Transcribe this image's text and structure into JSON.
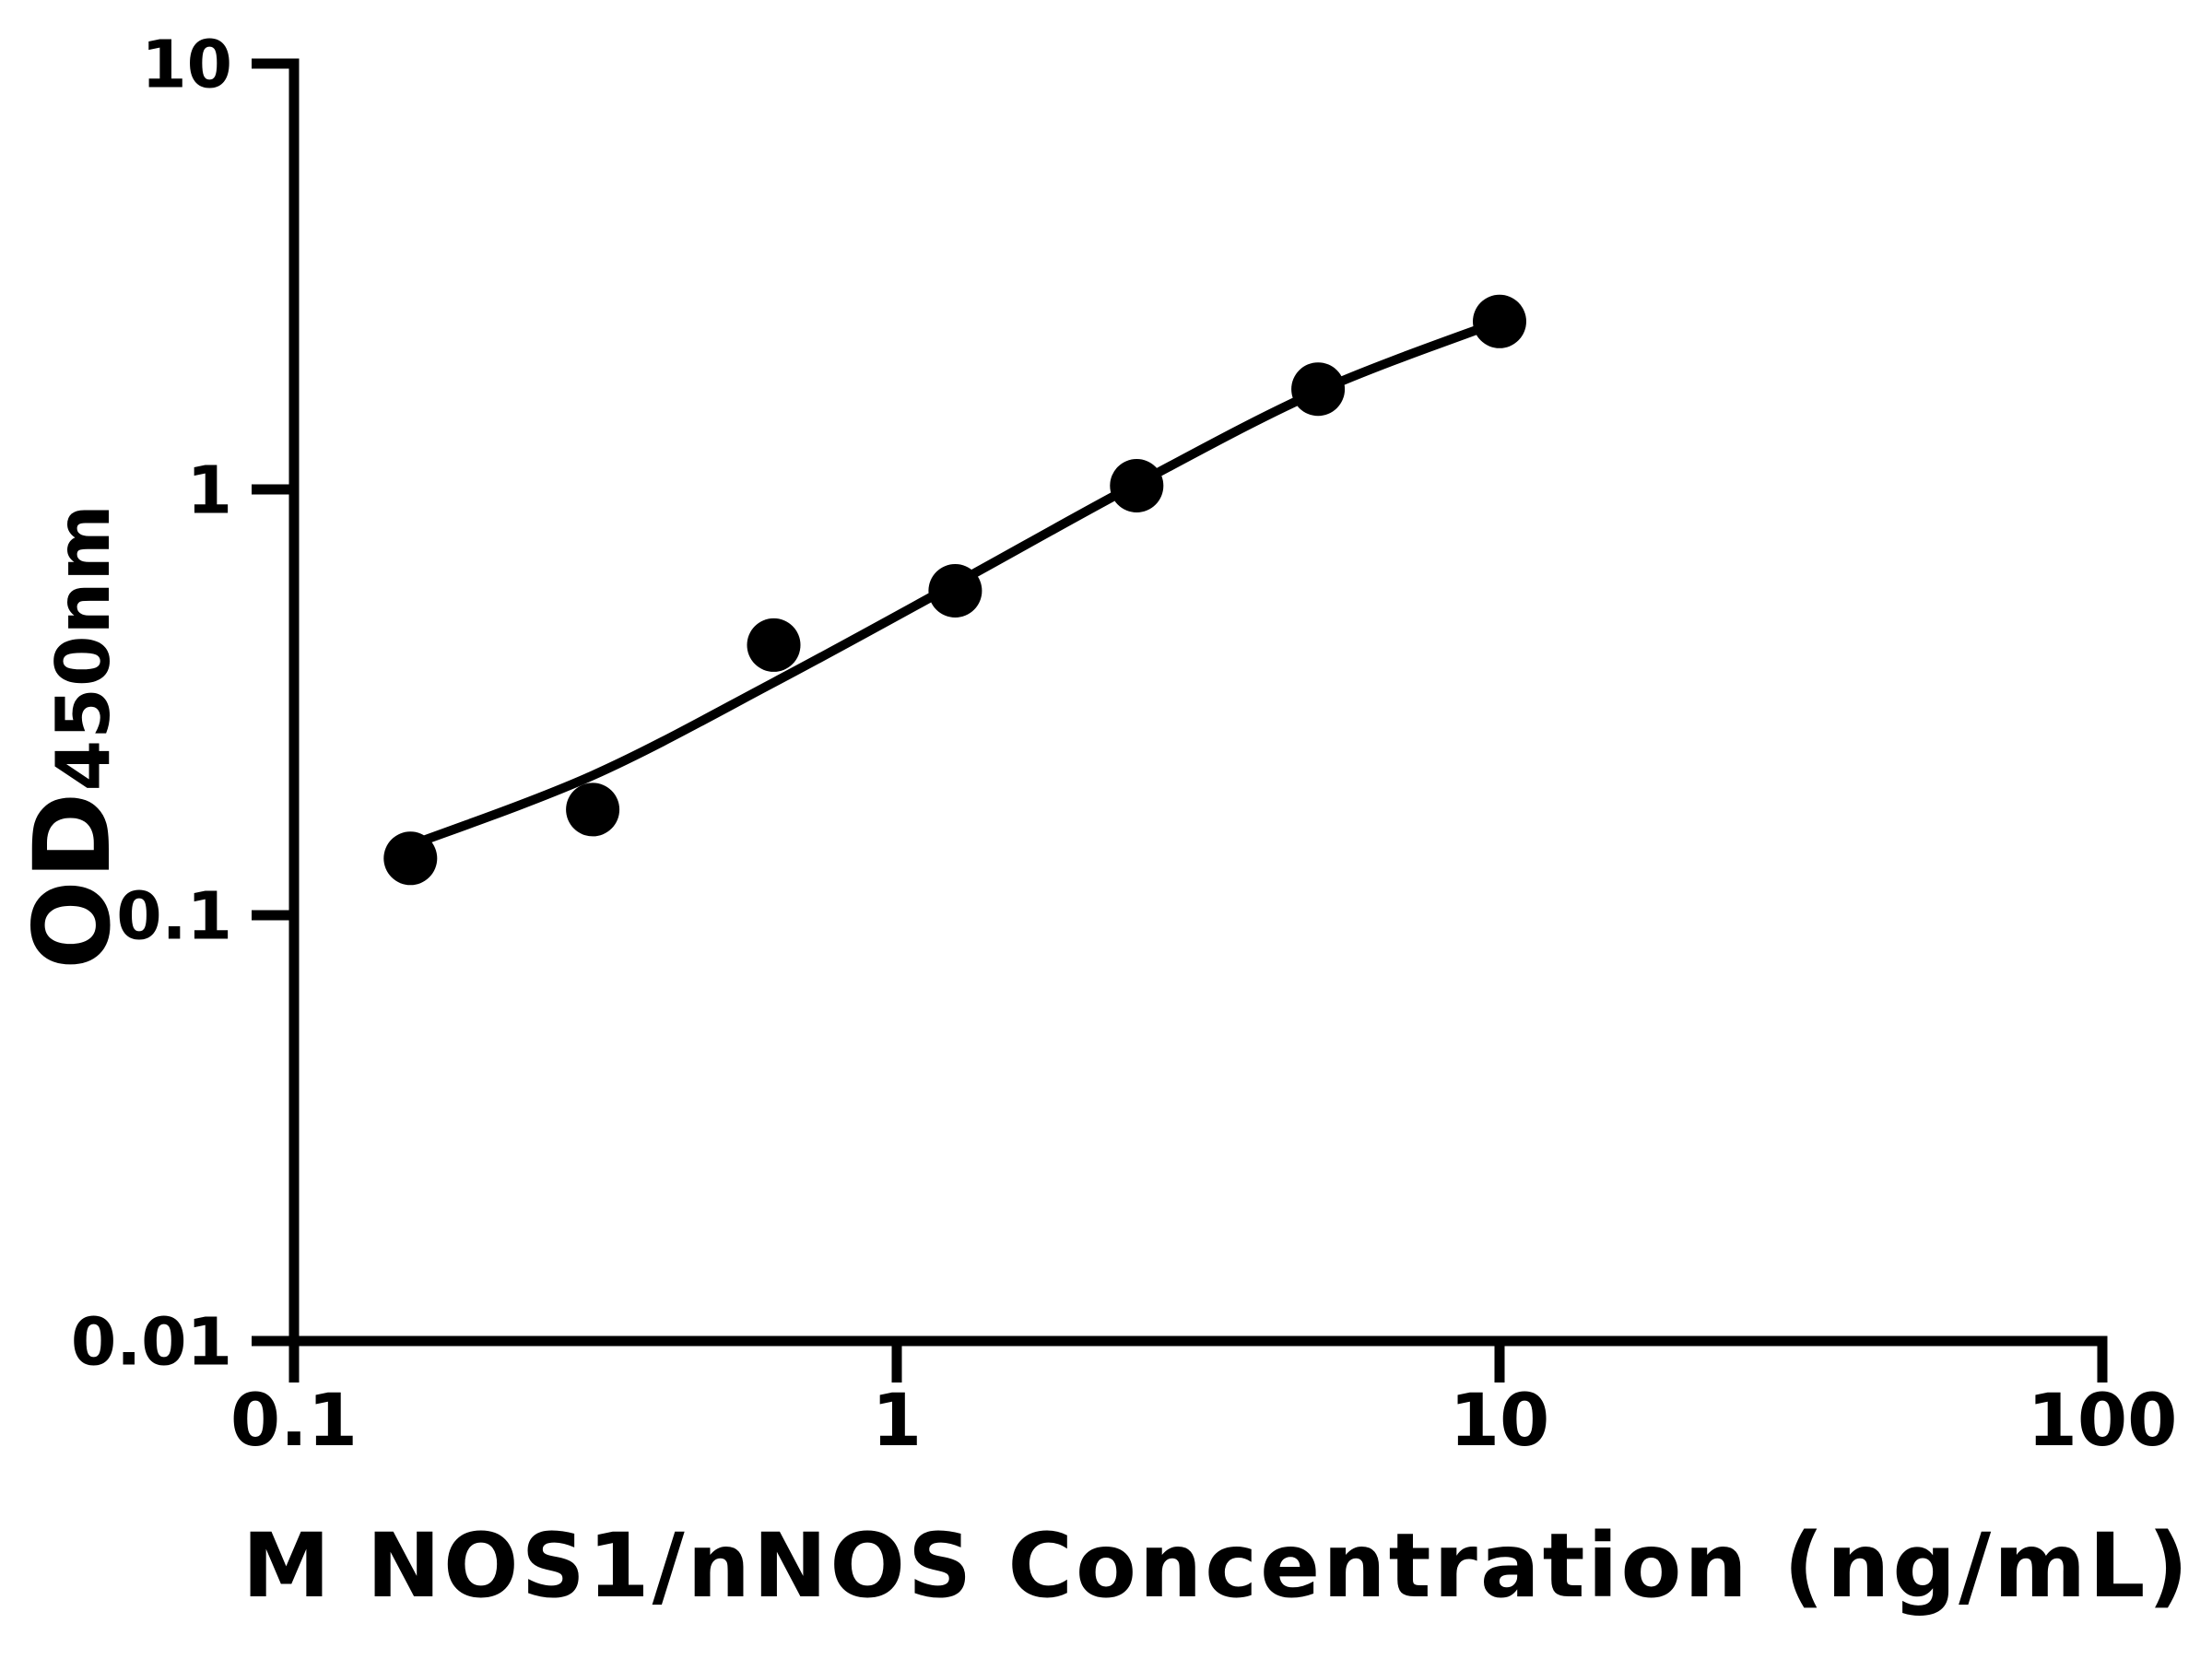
{
  "figure": {
    "background_color": "#ffffff",
    "ink_color": "#000000"
  },
  "x_axis": {
    "label": "M NOS1/nNOS Concentration (ng/mL)",
    "scale": "log",
    "min": 0.1,
    "max": 100,
    "ticks": [
      {
        "value": 0.1,
        "label": "0.1"
      },
      {
        "value": 1,
        "label": "1"
      },
      {
        "value": 10,
        "label": "10"
      },
      {
        "value": 100,
        "label": "100"
      }
    ]
  },
  "y_axis": {
    "label_main": "OD",
    "label_sub": "450nm",
    "scale": "log",
    "min": 0.01,
    "max": 10,
    "ticks": [
      {
        "value": 10,
        "label": "10"
      },
      {
        "value": 1,
        "label": "1"
      },
      {
        "value": 0.1,
        "label": "0.1"
      },
      {
        "value": 0.01,
        "label": "0.01"
      }
    ]
  },
  "chart_data": {
    "type": "scatter",
    "title": "",
    "xlabel": "M NOS1/nNOS Concentration (ng/mL)",
    "ylabel": "OD450nm",
    "x_scale": "log",
    "y_scale": "log",
    "xlim": [
      0.1,
      100
    ],
    "ylim": [
      0.01,
      10
    ],
    "x_tick_labels": [
      "0.1",
      "1",
      "10",
      "100"
    ],
    "y_tick_labels": [
      "10",
      "1",
      "0.1",
      "0.01"
    ],
    "grid": false,
    "legend": false,
    "marker_color": "#000000",
    "line_color": "#000000",
    "series": [
      {
        "name": "standard-data-points",
        "kind": "points",
        "marker": "filled-circle",
        "x": [
          0.156,
          0.313,
          0.625,
          1.25,
          2.5,
          5,
          10
        ],
        "y": [
          0.136,
          0.177,
          0.431,
          0.578,
          1.02,
          1.72,
          2.48
        ]
      },
      {
        "name": "fitted-standard-curve",
        "kind": "line",
        "x": [
          0.156,
          0.313,
          0.625,
          1.25,
          2.5,
          5,
          10
        ],
        "y": [
          0.146,
          0.213,
          0.352,
          0.6,
          1.03,
          1.7,
          2.48
        ]
      }
    ]
  }
}
